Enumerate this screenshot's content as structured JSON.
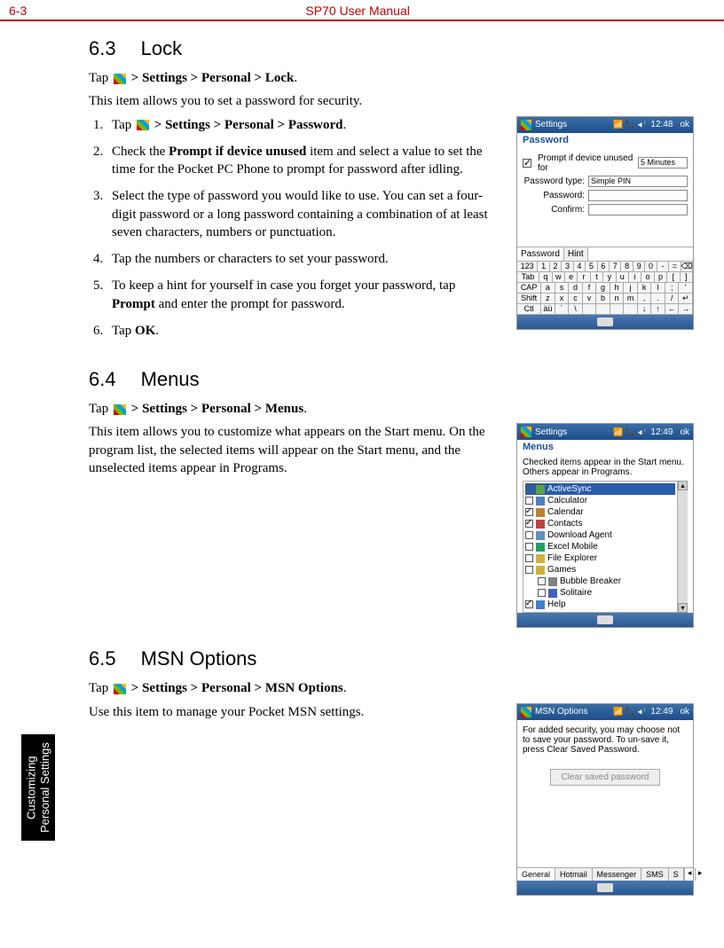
{
  "header": {
    "page_num": "6-3",
    "title": "SP70 User Manual"
  },
  "side_tab": "Customizing\nPersonal Settings",
  "s63": {
    "heading_num": "6.3",
    "heading_text": "Lock",
    "tap_prefix": "Tap ",
    "tap_path": " > Settings > Personal > Lock",
    "intro": "This item allows you to set a password for security.",
    "steps": [
      {
        "pre": "Tap ",
        "bold": " > Settings > Personal > Password",
        "post": "."
      },
      {
        "pre": "Check the ",
        "bold": "Prompt if device unused",
        "post": " item and select a value to set the time for the Pocket PC Phone to prompt for password after idling."
      },
      {
        "pre": "",
        "bold": "",
        "post": "Select the type of password you would like to use. You can set a four-digit password or a long password containing a combination of at least seven characters, numbers or punctuation."
      },
      {
        "pre": "",
        "bold": "",
        "post": "Tap the numbers or characters to set your password."
      },
      {
        "pre": "To keep a hint for yourself in case you forget your password, tap ",
        "bold": "Prompt",
        "post": " and enter the prompt for password."
      },
      {
        "pre": "Tap ",
        "bold": "OK",
        "post": "."
      }
    ],
    "ss": {
      "title": "Settings",
      "time": "12:48",
      "ok": "ok",
      "subtitle": "Password",
      "prompt_label": "Prompt if device unused for",
      "prompt_value": "5 Minutes",
      "type_label": "Password type:",
      "type_value": "Simple PIN",
      "pass_label": "Password:",
      "conf_label": "Confirm:",
      "tab1": "Password",
      "tab2": "Hint",
      "kb": [
        [
          "123",
          "1",
          "2",
          "3",
          "4",
          "5",
          "6",
          "7",
          "8",
          "9",
          "0",
          "-",
          "=",
          "⌫"
        ],
        [
          "Tab",
          "q",
          "w",
          "e",
          "r",
          "t",
          "y",
          "u",
          "i",
          "o",
          "p",
          "[",
          "]"
        ],
        [
          "CAP",
          "a",
          "s",
          "d",
          "f",
          "g",
          "h",
          "j",
          "k",
          "l",
          ";",
          "'"
        ],
        [
          "Shift",
          "z",
          "x",
          "c",
          "v",
          "b",
          "n",
          "m",
          ",",
          ".",
          "/",
          "↵"
        ],
        [
          "Ctl",
          "àü",
          "`",
          "\\",
          "",
          "",
          "",
          "",
          "↓",
          "↑",
          "←",
          "→"
        ]
      ]
    }
  },
  "s64": {
    "heading_num": "6.4",
    "heading_text": "Menus",
    "tap_prefix": "Tap ",
    "tap_path": " > Settings > Personal > Menus",
    "intro": "This item allows you to customize what appears on the Start menu. On the program list, the selected items will appear on the Start menu, and the unselected items appear in Programs.",
    "ss": {
      "title": "Settings",
      "time": "12:49",
      "ok": "ok",
      "subtitle": "Menus",
      "note": "Checked items appear in the Start menu. Others appear in Programs.",
      "items": [
        {
          "c": false,
          "color": "#5aa040",
          "label": "ActiveSync",
          "hl": true
        },
        {
          "c": false,
          "color": "#4a80c0",
          "label": "Calculator"
        },
        {
          "c": true,
          "color": "#c08030",
          "label": "Calendar"
        },
        {
          "c": true,
          "color": "#c04040",
          "label": "Contacts"
        },
        {
          "c": false,
          "color": "#6090c0",
          "label": "Download Agent"
        },
        {
          "c": false,
          "color": "#20a060",
          "label": "Excel Mobile"
        },
        {
          "c": false,
          "color": "#d0b040",
          "label": "File Explorer"
        },
        {
          "c": false,
          "color": "#d0b040",
          "label": "Games"
        },
        {
          "c": false,
          "color": "#808080",
          "label": "Bubble Breaker",
          "indent": true
        },
        {
          "c": false,
          "color": "#4060c0",
          "label": "Solitaire",
          "indent": true
        },
        {
          "c": true,
          "color": "#4080d0",
          "label": "Help"
        }
      ]
    }
  },
  "s65": {
    "heading_num": "6.5",
    "heading_text": "MSN Options",
    "tap_prefix": "Tap ",
    "tap_path": " > Settings > Personal > MSN Options",
    "intro": "Use this item to manage your Pocket MSN settings.",
    "ss": {
      "title": "MSN Options",
      "time": "12:49",
      "ok": "ok",
      "note": "For added security, you may choose not to save your password. To un-save it, press Clear Saved Password.",
      "button": "Clear saved password",
      "tabs": [
        "General",
        "Hotmail",
        "Messenger",
        "SMS",
        "S"
      ]
    }
  }
}
